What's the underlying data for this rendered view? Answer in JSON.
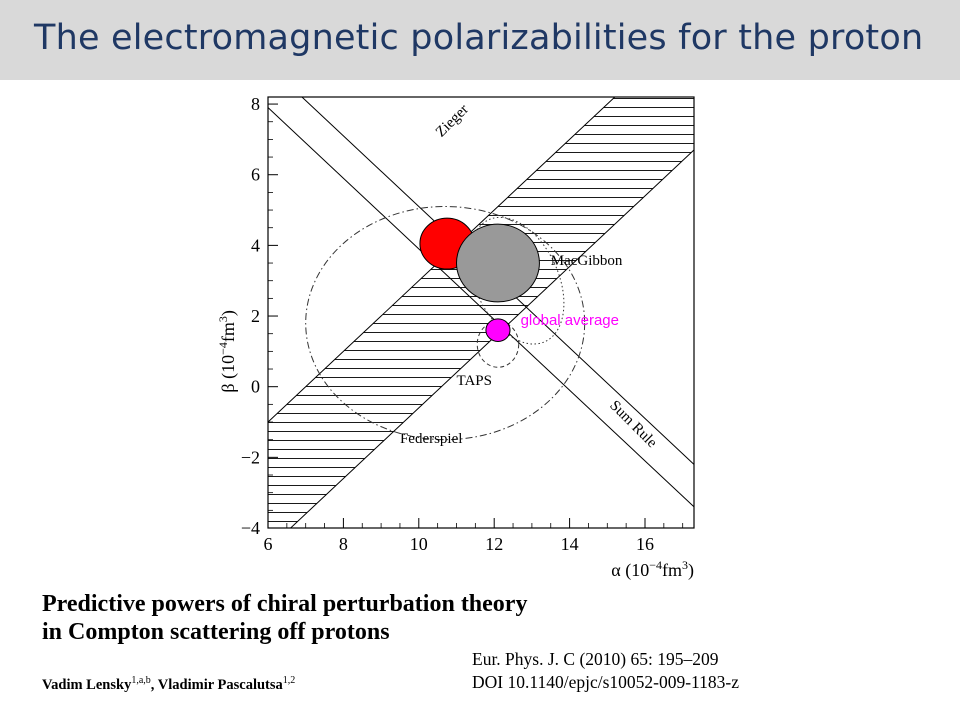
{
  "slide": {
    "title": "The electromagnetic polarizabilities for the proton"
  },
  "paper": {
    "title_line1": "Predictive powers of chiral perturbation theory",
    "title_line2": "in Compton scattering off protons",
    "author1": "Vadim Lensky",
    "author1_sup": "1,a,b",
    "author_sep": ", ",
    "author2": "Vladimir Pascalutsa",
    "author2_sup": "1,2",
    "journal_line1": "Eur. Phys. J. C (2010) 65: 195–209",
    "journal_line2": "DOI 10.1140/epjc/s10052-009-1183-z"
  },
  "chart_data": {
    "type": "scatter",
    "xlim": [
      6,
      17.3
    ],
    "ylim": [
      -4,
      8.2
    ],
    "x_ticks": [
      6,
      8,
      10,
      12,
      14,
      16
    ],
    "y_ticks": [
      -4,
      -2,
      0,
      2,
      4,
      6,
      8
    ],
    "xlabel_prefix": "α (10",
    "xlabel_exp": "−4",
    "xlabel_suffix": "fm",
    "xlabel_exp2": "3",
    "xlabel_close": ")",
    "ylabel_prefix": "β (10",
    "ylabel_exp": "−4",
    "ylabel_suffix": "fm",
    "ylabel_exp2": "3",
    "ylabel_close": ")",
    "grid": false,
    "constraint_bands": [
      {
        "name": "Zieger",
        "slope": 1,
        "intercept_low": -10.6,
        "intercept_high": -7.0
      },
      {
        "name": "Sum Rule",
        "slope": -1,
        "intercept_low": 13.9,
        "intercept_high": 15.1
      }
    ],
    "ellipses": [
      {
        "name": "red",
        "center": [
          10.75,
          4.05
        ],
        "rx": 0.72,
        "ry": 0.72,
        "fill": "#ff0000"
      },
      {
        "name": "grey",
        "center": [
          12.1,
          3.5
        ],
        "rx": 1.1,
        "ry": 1.1,
        "fill": "#999999"
      },
      {
        "name": "global average",
        "center": [
          12.1,
          1.6
        ],
        "rx": 0.32,
        "ry": 0.32,
        "fill": "#ff00ff"
      }
    ],
    "contours": [
      {
        "name": "Federspiel",
        "center": [
          10.7,
          1.8
        ],
        "rx": 3.7,
        "ry": 3.3,
        "style": "dashdot"
      },
      {
        "name": "MacGibbon",
        "center": [
          12.6,
          3.0
        ],
        "rx": 1.1,
        "ry": 1.9,
        "rotate": -25,
        "style": "dotted"
      },
      {
        "name": "TAPS",
        "center": [
          12.1,
          1.2
        ],
        "rx": 0.55,
        "ry": 0.65,
        "style": "dashed"
      }
    ],
    "annotations": [
      {
        "text": "Zieger",
        "x": 10.6,
        "y": 7.05,
        "rotate": -45,
        "color": "#000000"
      },
      {
        "text": "Sum Rule",
        "x": 15.05,
        "y": -0.55,
        "rotate": 45,
        "color": "#000000"
      },
      {
        "text": "MacGibbon",
        "x": 13.5,
        "y": 3.45,
        "rotate": 0,
        "color": "#000000"
      },
      {
        "text": "global average",
        "x": 12.7,
        "y": 1.75,
        "rotate": 0,
        "color": "#ff00ff"
      },
      {
        "text": "TAPS",
        "x": 11.0,
        "y": 0.05,
        "rotate": 0,
        "color": "#000000"
      },
      {
        "text": "Federspiel",
        "x": 9.5,
        "y": -1.6,
        "rotate": 0,
        "color": "#000000"
      }
    ]
  }
}
